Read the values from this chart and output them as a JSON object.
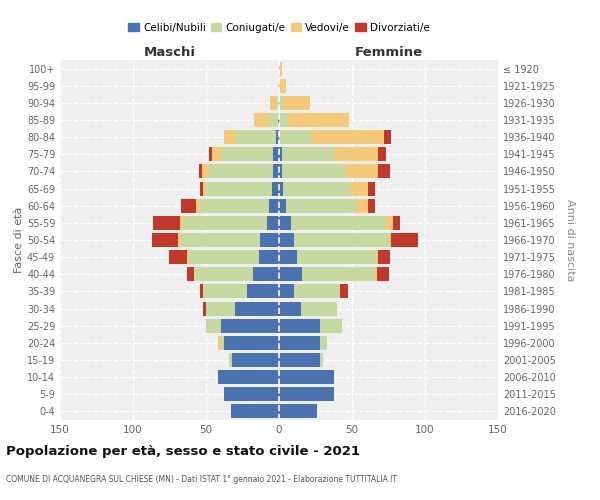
{
  "age_groups": [
    "0-4",
    "5-9",
    "10-14",
    "15-19",
    "20-24",
    "25-29",
    "30-34",
    "35-39",
    "40-44",
    "45-49",
    "50-54",
    "55-59",
    "60-64",
    "65-69",
    "70-74",
    "75-79",
    "80-84",
    "85-89",
    "90-94",
    "95-99",
    "100+"
  ],
  "birth_years": [
    "2016-2020",
    "2011-2015",
    "2006-2010",
    "2001-2005",
    "1996-2000",
    "1991-1995",
    "1986-1990",
    "1981-1985",
    "1976-1980",
    "1971-1975",
    "1966-1970",
    "1961-1965",
    "1956-1960",
    "1951-1955",
    "1946-1950",
    "1941-1945",
    "1936-1940",
    "1931-1935",
    "1926-1930",
    "1921-1925",
    "≤ 1920"
  ],
  "colors": {
    "celibi": "#4a72b0",
    "coniugati": "#c5d9a0",
    "vedovi": "#f5c97a",
    "divorziati": "#c0392b"
  },
  "maschi": {
    "celibi": [
      33,
      38,
      42,
      32,
      38,
      40,
      30,
      22,
      18,
      14,
      13,
      8,
      7,
      5,
      4,
      4,
      2,
      1,
      0,
      0,
      0
    ],
    "coniugati": [
      0,
      0,
      0,
      2,
      2,
      10,
      20,
      30,
      40,
      48,
      55,
      58,
      48,
      45,
      44,
      36,
      28,
      6,
      2,
      0,
      0
    ],
    "vedovi": [
      0,
      0,
      0,
      0,
      2,
      0,
      0,
      0,
      0,
      1,
      1,
      2,
      2,
      2,
      5,
      6,
      8,
      10,
      4,
      1,
      0
    ],
    "divorziati": [
      0,
      0,
      0,
      0,
      0,
      0,
      2,
      2,
      5,
      12,
      18,
      18,
      10,
      2,
      2,
      2,
      0,
      0,
      0,
      0,
      0
    ]
  },
  "femmine": {
    "celibi": [
      26,
      38,
      38,
      28,
      28,
      28,
      15,
      10,
      16,
      12,
      10,
      8,
      5,
      3,
      2,
      2,
      0,
      0,
      0,
      0,
      0
    ],
    "coniugati": [
      0,
      0,
      0,
      2,
      5,
      15,
      25,
      32,
      50,
      55,
      65,
      65,
      48,
      46,
      44,
      36,
      22,
      6,
      3,
      1,
      0
    ],
    "vedovi": [
      0,
      0,
      0,
      0,
      0,
      0,
      0,
      0,
      1,
      1,
      2,
      5,
      8,
      12,
      22,
      30,
      50,
      42,
      18,
      4,
      2
    ],
    "divorziati": [
      0,
      0,
      0,
      0,
      0,
      0,
      0,
      5,
      8,
      8,
      18,
      5,
      5,
      5,
      8,
      5,
      5,
      0,
      0,
      0,
      0
    ]
  },
  "title": "Popolazione per età, sesso e stato civile - 2021",
  "subtitle": "COMUNE DI ACQUANEGRA SUL CHIESE (MN) - Dati ISTAT 1° gennaio 2021 - Elaborazione TUTTITALIA.IT",
  "xlabel_left": "Maschi",
  "xlabel_right": "Femmine",
  "ylabel_left": "Fasce di età",
  "ylabel_right": "Anni di nascita",
  "xlim": 150
}
